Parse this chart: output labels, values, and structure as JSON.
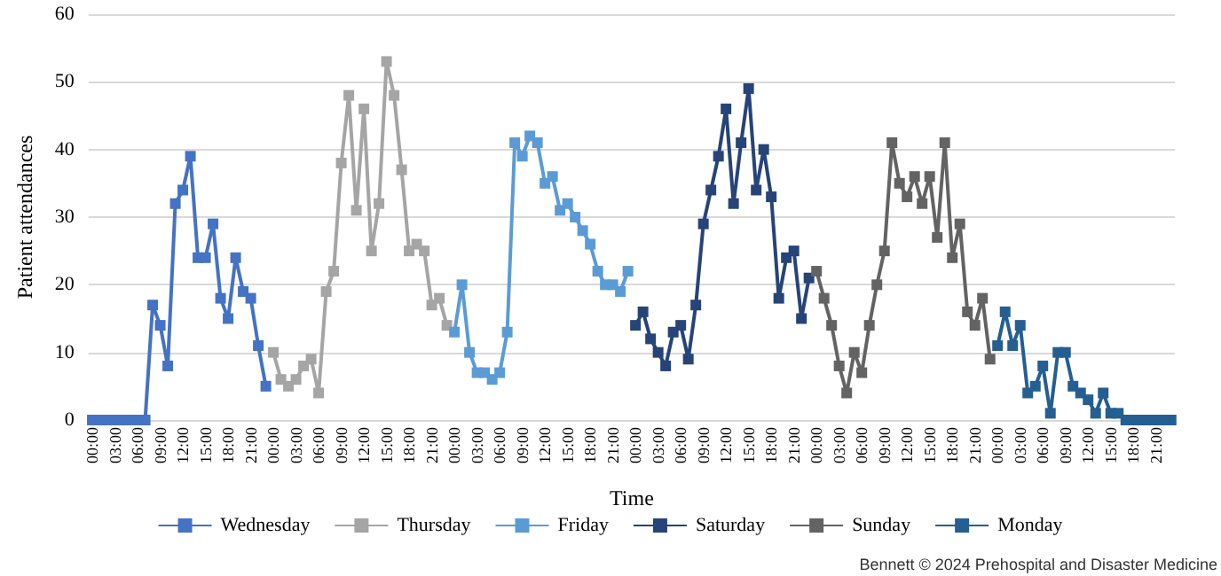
{
  "chart_data": {
    "type": "line",
    "xlabel": "Time",
    "ylabel": "Patient attendances",
    "annotations": [
      "Bennett © 2024 Prehospital and Disaster Medicine"
    ],
    "categories": [
      "00:00",
      null,
      null,
      "03:00",
      null,
      null,
      "06:00",
      null,
      null,
      "09:00",
      null,
      null,
      "12:00",
      null,
      null,
      "15:00",
      null,
      null,
      "18:00",
      null,
      null,
      "21:00",
      null,
      null,
      "00:00",
      null,
      null,
      "03:00",
      null,
      null,
      "06:00",
      null,
      null,
      "09:00",
      null,
      null,
      "12:00",
      null,
      null,
      "15:00",
      null,
      null,
      "18:00",
      null,
      null,
      "21:00",
      null,
      null,
      "00:00",
      null,
      null,
      "03:00",
      null,
      null,
      "06:00",
      null,
      null,
      "09:00",
      null,
      null,
      "12:00",
      null,
      null,
      "15:00",
      null,
      null,
      "18:00",
      null,
      null,
      "21:00",
      null,
      null,
      "00:00",
      null,
      null,
      "03:00",
      null,
      null,
      "06:00",
      null,
      null,
      "09:00",
      null,
      null,
      "12:00",
      null,
      null,
      "15:00",
      null,
      null,
      "18:00",
      null,
      null,
      "21:00",
      null,
      null,
      "00:00",
      null,
      null,
      "03:00",
      null,
      null,
      "06:00",
      null,
      null,
      "09:00",
      null,
      null,
      "12:00",
      null,
      null,
      "15:00",
      null,
      null,
      "18:00",
      null,
      null,
      "21:00",
      null,
      null,
      "00:00",
      null,
      null,
      "03:00",
      null,
      null,
      "06:00",
      null,
      null,
      "09:00",
      null,
      null,
      "12:00",
      null,
      null,
      "15:00",
      null,
      null,
      "18:00",
      null,
      null,
      "21:00",
      null,
      null
    ],
    "series": [
      {
        "name": "Wednesday",
        "color": "#4472c4",
        "values": [
          0,
          0,
          0,
          0,
          0,
          0,
          0,
          0,
          17,
          14,
          8,
          32,
          34,
          39,
          24,
          24,
          29,
          18,
          15,
          24,
          19,
          18,
          11,
          5,
          null,
          null,
          null,
          null,
          null,
          null,
          null,
          null,
          null,
          null,
          null,
          null,
          null,
          null,
          null,
          null,
          null,
          null,
          null,
          null,
          null,
          null,
          null,
          null,
          null,
          null,
          null,
          null,
          null,
          null,
          null,
          null,
          null,
          null,
          null,
          null,
          null,
          null,
          null,
          null,
          null,
          null,
          null,
          null,
          null,
          null,
          null,
          null,
          null,
          null,
          null,
          null,
          null,
          null,
          null,
          null,
          null,
          null,
          null,
          null,
          null,
          null,
          null,
          null,
          null,
          null,
          null,
          null,
          null,
          null,
          null,
          null,
          null,
          null,
          null,
          null,
          null,
          null,
          null,
          null,
          null,
          null,
          null,
          null,
          null,
          null,
          null,
          null,
          null,
          null,
          null,
          null,
          null,
          null,
          null,
          null,
          null,
          null,
          null,
          null,
          null,
          null,
          null,
          null,
          null,
          null,
          null,
          null,
          null,
          null,
          null,
          null,
          null,
          null,
          null,
          null,
          null,
          null,
          null,
          null
        ]
      },
      {
        "name": "Thursday",
        "color": "#a5a5a5",
        "values": [
          null,
          null,
          null,
          null,
          null,
          null,
          null,
          null,
          null,
          null,
          null,
          null,
          null,
          null,
          null,
          null,
          null,
          null,
          null,
          null,
          null,
          null,
          null,
          null,
          10,
          6,
          5,
          6,
          8,
          9,
          4,
          19,
          22,
          38,
          48,
          31,
          46,
          25,
          32,
          53,
          48,
          37,
          25,
          26,
          25,
          17,
          18,
          14,
          null,
          null,
          null,
          null,
          null,
          null,
          null,
          null,
          null,
          null,
          null,
          null,
          null,
          null,
          null,
          null,
          null,
          null,
          null,
          null,
          null,
          null,
          null,
          null,
          null,
          null,
          null,
          null,
          null,
          null,
          null,
          null,
          null,
          null,
          null,
          null,
          null,
          null,
          null,
          null,
          null,
          null,
          null,
          null,
          null,
          null,
          null,
          null,
          null,
          null,
          null,
          null,
          null,
          null,
          null,
          null,
          null,
          null,
          null,
          null,
          null,
          null,
          null,
          null,
          null,
          null,
          null,
          null,
          null,
          null,
          null,
          null,
          null,
          null,
          null,
          null,
          null,
          null,
          null,
          null,
          null,
          null,
          null,
          null,
          null,
          null,
          null,
          null,
          null,
          null,
          null,
          null,
          null,
          null,
          null,
          null
        ]
      },
      {
        "name": "Friday",
        "color": "#5b9bd5",
        "values": [
          null,
          null,
          null,
          null,
          null,
          null,
          null,
          null,
          null,
          null,
          null,
          null,
          null,
          null,
          null,
          null,
          null,
          null,
          null,
          null,
          null,
          null,
          null,
          null,
          null,
          null,
          null,
          null,
          null,
          null,
          null,
          null,
          null,
          null,
          null,
          null,
          null,
          null,
          null,
          null,
          null,
          null,
          null,
          null,
          null,
          null,
          null,
          null,
          13,
          20,
          10,
          7,
          7,
          6,
          7,
          13,
          41,
          39,
          42,
          41,
          35,
          36,
          31,
          32,
          30,
          28,
          26,
          22,
          20,
          20,
          19,
          22,
          null,
          null,
          null,
          null,
          null,
          null,
          null,
          null,
          null,
          null,
          null,
          null,
          null,
          null,
          null,
          null,
          null,
          null,
          null,
          null,
          null,
          null,
          null,
          null,
          null,
          null,
          null,
          null,
          null,
          null,
          null,
          null,
          null,
          null,
          null,
          null,
          null,
          null,
          null,
          null,
          null,
          null,
          null,
          null,
          null,
          null,
          null,
          null,
          null,
          null,
          null,
          null,
          null,
          null,
          null,
          null,
          null,
          null,
          null,
          null,
          null,
          null,
          null,
          null,
          null,
          null,
          null,
          null,
          null,
          null,
          null,
          null
        ]
      },
      {
        "name": "Saturday",
        "color": "#264478",
        "values": [
          null,
          null,
          null,
          null,
          null,
          null,
          null,
          null,
          null,
          null,
          null,
          null,
          null,
          null,
          null,
          null,
          null,
          null,
          null,
          null,
          null,
          null,
          null,
          null,
          null,
          null,
          null,
          null,
          null,
          null,
          null,
          null,
          null,
          null,
          null,
          null,
          null,
          null,
          null,
          null,
          null,
          null,
          null,
          null,
          null,
          null,
          null,
          null,
          null,
          null,
          null,
          null,
          null,
          null,
          null,
          null,
          null,
          null,
          null,
          null,
          null,
          null,
          null,
          null,
          null,
          null,
          null,
          null,
          null,
          null,
          null,
          null,
          14,
          16,
          12,
          10,
          8,
          13,
          14,
          9,
          17,
          29,
          34,
          39,
          46,
          32,
          41,
          49,
          34,
          40,
          33,
          18,
          24,
          25,
          15,
          21,
          null,
          null,
          null,
          null,
          null,
          null,
          null,
          null,
          null,
          null,
          null,
          null,
          null,
          null,
          null,
          null,
          null,
          null,
          null,
          null,
          null,
          null,
          null,
          null,
          null,
          null,
          null,
          null,
          null,
          null,
          null,
          null,
          null,
          null,
          null,
          null,
          null,
          null,
          null,
          null,
          null,
          null,
          null,
          null,
          null,
          null,
          null,
          null
        ]
      },
      {
        "name": "Sunday",
        "color": "#636363",
        "values": [
          null,
          null,
          null,
          null,
          null,
          null,
          null,
          null,
          null,
          null,
          null,
          null,
          null,
          null,
          null,
          null,
          null,
          null,
          null,
          null,
          null,
          null,
          null,
          null,
          null,
          null,
          null,
          null,
          null,
          null,
          null,
          null,
          null,
          null,
          null,
          null,
          null,
          null,
          null,
          null,
          null,
          null,
          null,
          null,
          null,
          null,
          null,
          null,
          null,
          null,
          null,
          null,
          null,
          null,
          null,
          null,
          null,
          null,
          null,
          null,
          null,
          null,
          null,
          null,
          null,
          null,
          null,
          null,
          null,
          null,
          null,
          null,
          null,
          null,
          null,
          null,
          null,
          null,
          null,
          null,
          null,
          null,
          null,
          null,
          null,
          null,
          null,
          null,
          null,
          null,
          null,
          null,
          null,
          null,
          null,
          null,
          22,
          18,
          14,
          8,
          4,
          10,
          7,
          14,
          20,
          25,
          41,
          35,
          33,
          36,
          32,
          36,
          27,
          41,
          24,
          29,
          16,
          14,
          18,
          9,
          null,
          null,
          null,
          null,
          null,
          null,
          null,
          null,
          null,
          null,
          null,
          null,
          null,
          null,
          null,
          null,
          null,
          null,
          null,
          null,
          null,
          null,
          null,
          null
        ]
      },
      {
        "name": "Monday",
        "color": "#255e91",
        "values": [
          null,
          null,
          null,
          null,
          null,
          null,
          null,
          null,
          null,
          null,
          null,
          null,
          null,
          null,
          null,
          null,
          null,
          null,
          null,
          null,
          null,
          null,
          null,
          null,
          null,
          null,
          null,
          null,
          null,
          null,
          null,
          null,
          null,
          null,
          null,
          null,
          null,
          null,
          null,
          null,
          null,
          null,
          null,
          null,
          null,
          null,
          null,
          null,
          null,
          null,
          null,
          null,
          null,
          null,
          null,
          null,
          null,
          null,
          null,
          null,
          null,
          null,
          null,
          null,
          null,
          null,
          null,
          null,
          null,
          null,
          null,
          null,
          null,
          null,
          null,
          null,
          null,
          null,
          null,
          null,
          null,
          null,
          null,
          null,
          null,
          null,
          null,
          null,
          null,
          null,
          null,
          null,
          null,
          null,
          null,
          null,
          null,
          null,
          null,
          null,
          null,
          null,
          null,
          null,
          null,
          null,
          null,
          null,
          null,
          null,
          null,
          null,
          null,
          null,
          null,
          null,
          null,
          null,
          null,
          null,
          11,
          16,
          11,
          14,
          4,
          5,
          8,
          1,
          10,
          10,
          5,
          4,
          3,
          1,
          4,
          1,
          1,
          0,
          0,
          0,
          0,
          0,
          0,
          0
        ]
      }
    ],
    "ylim": [
      0,
      60
    ],
    "yticks": [
      0,
      10,
      20,
      30,
      40,
      50,
      60
    ],
    "grid": "y",
    "legend": "bottom",
    "marker": "square",
    "line_style": "solid"
  }
}
